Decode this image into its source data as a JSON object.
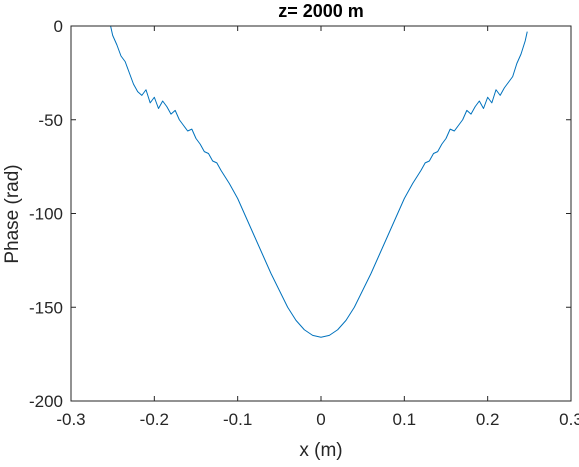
{
  "chart_data": {
    "type": "line",
    "title": "z= 2000 m",
    "xlabel": "x (m)",
    "ylabel": "Phase (rad)",
    "xlim": [
      -0.3,
      0.3
    ],
    "ylim": [
      -200,
      0
    ],
    "xticks": [
      -0.3,
      -0.2,
      -0.1,
      0,
      0.1,
      0.2,
      0.3
    ],
    "xtick_labels": [
      "-0.3",
      "-0.2",
      "-0.1",
      "0",
      "0.1",
      "0.2",
      "0.3"
    ],
    "yticks": [
      -200,
      -150,
      -100,
      -50,
      0
    ],
    "ytick_labels": [
      "-200",
      "-150",
      "-100",
      "-50",
      "0"
    ],
    "grid": false,
    "line_color": "#0072BD",
    "series": [
      {
        "x": [
          -0.2525,
          -0.25,
          -0.245,
          -0.24,
          -0.235,
          -0.23,
          -0.225,
          -0.22,
          -0.215,
          -0.21,
          -0.205,
          -0.2,
          -0.195,
          -0.19,
          -0.185,
          -0.18,
          -0.175,
          -0.17,
          -0.165,
          -0.16,
          -0.155,
          -0.15,
          -0.145,
          -0.14,
          -0.135,
          -0.13,
          -0.125,
          -0.12,
          -0.11,
          -0.1,
          -0.09,
          -0.08,
          -0.07,
          -0.06,
          -0.05,
          -0.04,
          -0.03,
          -0.02,
          -0.01,
          0,
          0.01,
          0.02,
          0.03,
          0.04,
          0.05,
          0.06,
          0.07,
          0.08,
          0.09,
          0.1,
          0.11,
          0.12,
          0.125,
          0.13,
          0.135,
          0.14,
          0.145,
          0.15,
          0.155,
          0.16,
          0.165,
          0.17,
          0.175,
          0.18,
          0.185,
          0.19,
          0.195,
          0.2,
          0.205,
          0.21,
          0.215,
          0.22,
          0.225,
          0.23,
          0.235,
          0.24,
          0.245,
          0.2475
        ],
        "y": [
          0,
          -5,
          -10,
          -16,
          -19,
          -25,
          -31,
          -35,
          -37,
          -34,
          -41,
          -38,
          -44,
          -40,
          -43,
          -47,
          -45,
          -50,
          -53,
          -56,
          -55,
          -60,
          -63,
          -67,
          -68,
          -72,
          -73,
          -77,
          -84,
          -92,
          -102,
          -112,
          -122,
          -132,
          -141,
          -150,
          -157,
          -162,
          -165,
          -166,
          -165,
          -162,
          -157,
          -150,
          -141,
          -132,
          -122,
          -112,
          -102,
          -92,
          -84,
          -77,
          -73,
          -72,
          -68,
          -67,
          -63,
          -60,
          -55,
          -56,
          -53,
          -50,
          -45,
          -47,
          -43,
          -40,
          -44,
          -38,
          -41,
          -34,
          -37,
          -33,
          -30,
          -27,
          -20,
          -15,
          -8,
          -3
        ]
      }
    ]
  }
}
